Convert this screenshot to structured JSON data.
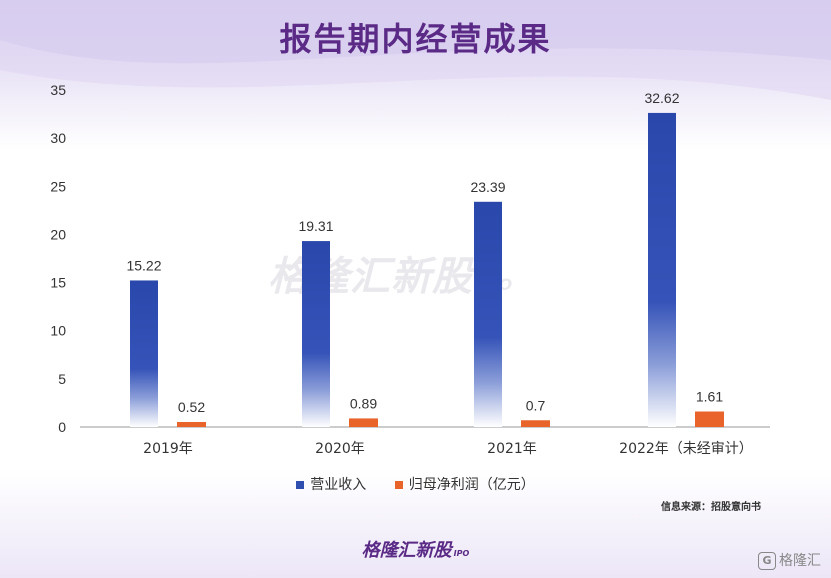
{
  "title": "报告期内经营成果",
  "watermark": {
    "text": "格隆汇新股",
    "sub": "IPO"
  },
  "legend": [
    {
      "name": "营业收入",
      "color": "#2f4fb0"
    },
    {
      "name": "归母净利润（亿元）",
      "color": "#e8642a"
    }
  ],
  "source": "信息来源：招股意向书",
  "brand": {
    "text": "格隆汇新股",
    "sub": "IPO"
  },
  "corner": {
    "icon": "G",
    "text": "格隆汇"
  },
  "chart_data": {
    "type": "bar",
    "categories": [
      "2019年",
      "2020年",
      "2021年",
      "2022年（未经审计）"
    ],
    "series": [
      {
        "name": "营业收入",
        "values": [
          15.22,
          19.31,
          23.39,
          32.62
        ],
        "labels": [
          "15.22",
          "19.31",
          "23.39",
          "32.62"
        ]
      },
      {
        "name": "归母净利润（亿元）",
        "values": [
          0.52,
          0.89,
          0.7,
          1.61
        ],
        "labels": [
          "0.52",
          "0.89",
          "0.7",
          "1.61"
        ]
      }
    ],
    "yticks": [
      "0",
      "5",
      "10",
      "15",
      "20",
      "25",
      "30",
      "35"
    ],
    "ylim": [
      0,
      35
    ],
    "grid": false,
    "legend_position": "bottom"
  }
}
